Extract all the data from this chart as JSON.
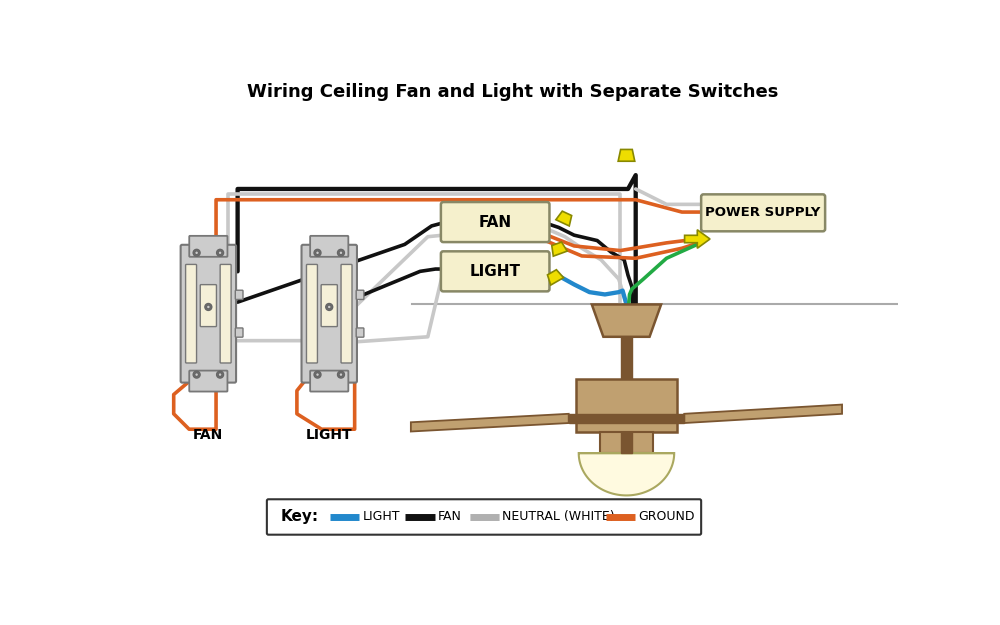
{
  "title": "Wiring Ceiling Fan and Light with Separate Switches",
  "title_fontsize": 13,
  "bg": "#ffffff",
  "wires": {
    "black": "#111111",
    "white": "#c8c8c8",
    "orange": "#dd6020",
    "blue": "#2288cc",
    "green": "#22aa44"
  },
  "comp": {
    "sw_body": "#cccccc",
    "sw_face": "#f5f0d8",
    "sw_border": "#777777",
    "box_face": "#f5f0cc",
    "box_border": "#888866",
    "tan": "#c0a070",
    "tan_dark": "#7a5530",
    "cream": "#fffae0",
    "yellow": "#eedd00",
    "yellow_dk": "#888800",
    "ceil_line": "#aaaaaa"
  },
  "key_labels": [
    "LIGHT",
    "FAN",
    "NEUTRAL (WHITE)",
    "GROUND"
  ],
  "key_colors": [
    "#2288cc",
    "#111111",
    "#c8c8c8",
    "#dd6020"
  ],
  "lw": 2.6
}
